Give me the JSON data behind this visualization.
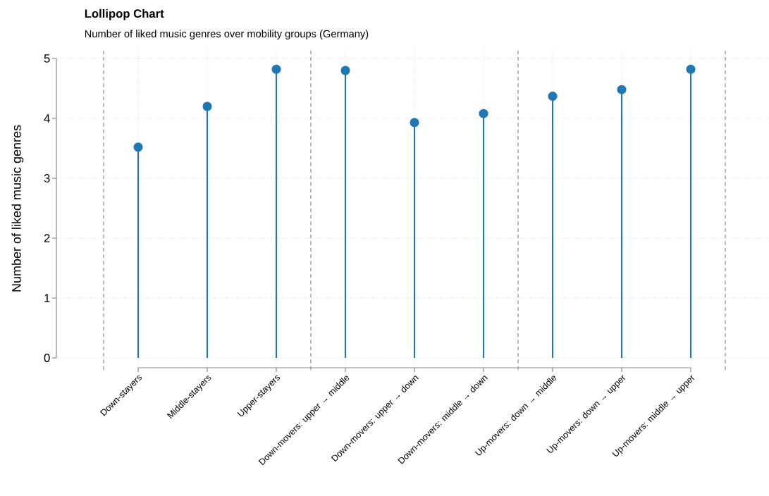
{
  "chart_data": {
    "type": "lollipop",
    "title": "Lollipop Chart",
    "subtitle": "Number of liked music genres over mobility groups (Germany)",
    "ylabel": "Number of liked music genres",
    "categories": [
      "Down-stayers",
      "Middle-stayers",
      "Upper-stayers",
      "Down-movers: upper → middle",
      "Down-movers: upper → down",
      "Down-movers: middle → down",
      "Up-movers: down → middle",
      "Up-movers: down → upper",
      "Up-movers: middle → upper"
    ],
    "values": [
      3.52,
      4.2,
      4.82,
      4.8,
      3.93,
      4.08,
      4.37,
      4.48,
      4.82
    ],
    "color": "#1f77b4",
    "marker": "circle",
    "grid": true,
    "ylim": [
      0,
      5
    ],
    "yticks": [
      0,
      1,
      2,
      3,
      4,
      5
    ]
  }
}
